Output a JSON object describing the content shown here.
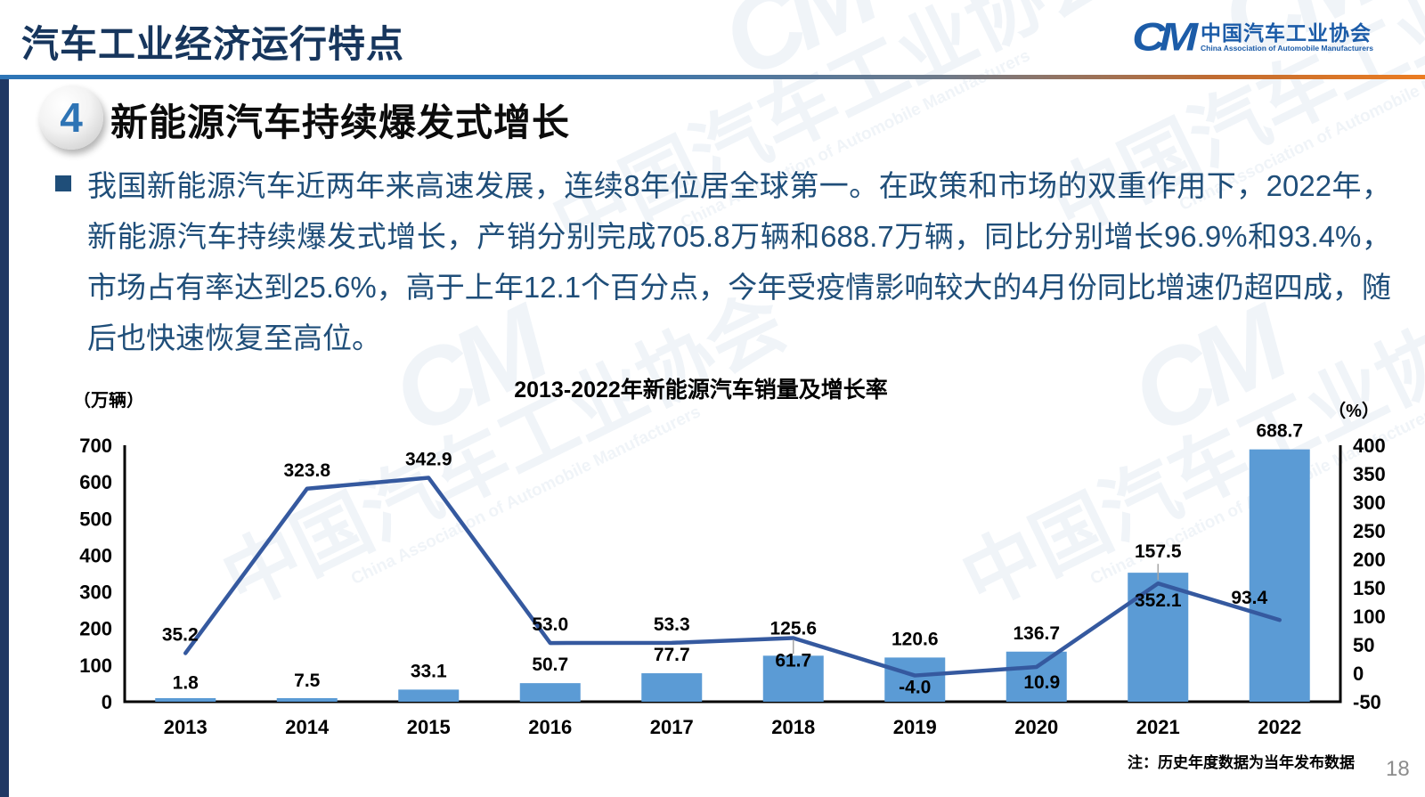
{
  "header": {
    "title": "汽车工业经济运行特点",
    "logo": {
      "monogram": "CM",
      "org_cn": "中国汽车工业协会",
      "org_en": "China Association of Automobile Manufacturers"
    }
  },
  "section": {
    "number": "4",
    "heading": "新能源汽车持续爆发式增长"
  },
  "body": {
    "paragraph": "我国新能源汽车近两年来高速发展，连续8年位居全球第一。在政策和市场的双重作用下，2022年，新能源汽车持续爆发式增长，产销分别完成705.8万辆和688.7万辆，同比分别增长96.9%和93.4%，市场占有率达到25.6%，高于上年12.1个百分点，今年受疫情影响较大的4月份同比增速仍超四成，随后也快速恢复至高位。"
  },
  "chart_data": {
    "type": "bar+line",
    "title": "2013-2022年新能源汽车销量及增长率",
    "categories": [
      "2013",
      "2014",
      "2015",
      "2016",
      "2017",
      "2018",
      "2019",
      "2020",
      "2021",
      "2022"
    ],
    "series": [
      {
        "name": "新能源汽车销量",
        "type": "bar",
        "axis": "left",
        "unit": "万辆",
        "color": "#5B9BD5",
        "values": [
          1.8,
          7.5,
          33.1,
          50.7,
          77.7,
          125.6,
          120.6,
          136.7,
          352.1,
          688.7
        ]
      },
      {
        "name": "增长率",
        "type": "line",
        "axis": "right",
        "unit": "%",
        "color": "#35599F",
        "values": [
          35.2,
          323.8,
          342.9,
          53.0,
          53.3,
          61.7,
          -4.0,
          10.9,
          157.5,
          93.4
        ]
      }
    ],
    "left_axis": {
      "label": "（万辆）",
      "min": 0,
      "max": 700,
      "step": 100
    },
    "right_axis": {
      "label": "（%）",
      "min": -50,
      "max": 400,
      "step": 50
    },
    "grid": false,
    "legend": "none"
  },
  "footer": {
    "note": "注：历史年度数据为当年发布数据",
    "page_number": "18"
  },
  "watermark": {
    "text_cn": "中国汽车工业协会",
    "text_en": "China Association of Automobile Manufacturers"
  },
  "colors": {
    "title": "#17365D",
    "body_text": "#1F4E79",
    "accent_blue": "#2E75B6",
    "accent_orange": "#EB7C21",
    "left_strip": "#1F3864",
    "bar": "#5B9BD5",
    "line": "#35599F"
  }
}
